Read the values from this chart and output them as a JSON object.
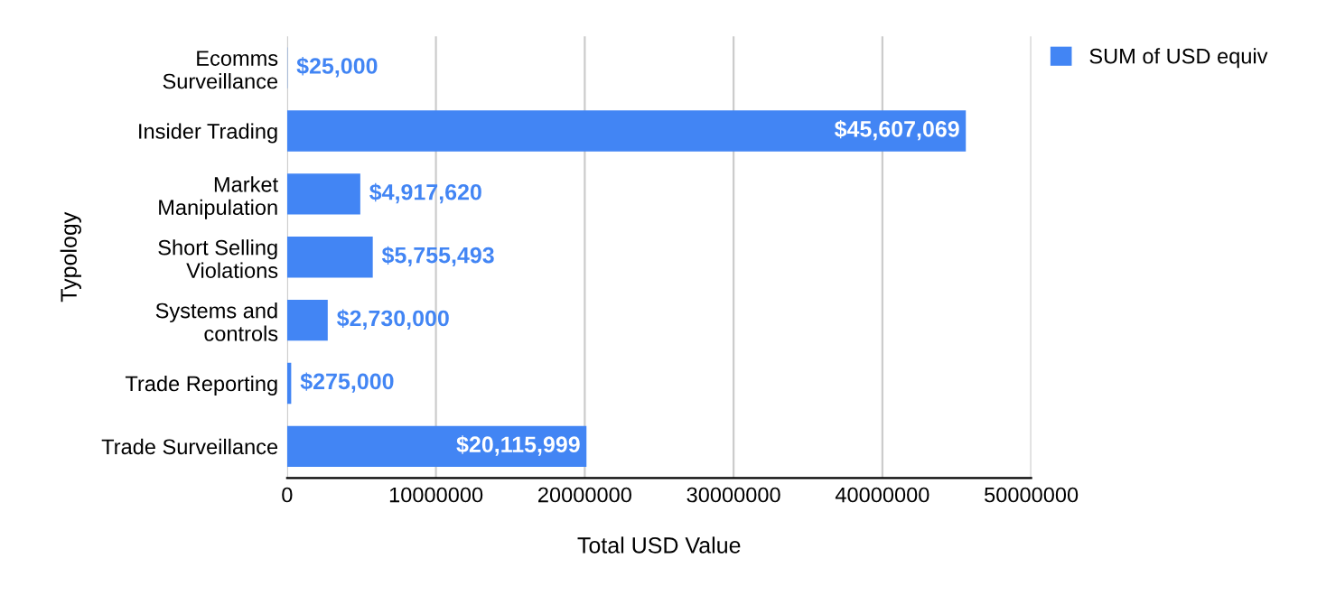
{
  "chart_data": {
    "type": "bar",
    "orientation": "horizontal",
    "xlabel": "Total USD Value",
    "ylabel": "Typology",
    "categories": [
      "Ecomms\nSurveillance",
      "Insider Trading",
      "Market\nManipulation",
      "Short Selling\nViolations",
      "Systems and\ncontrols",
      "Trade Reporting",
      "Trade Surveillance"
    ],
    "series": [
      {
        "name": "SUM of USD equiv",
        "color": "#4285f4",
        "values": [
          25000,
          45607069,
          4917620,
          5755493,
          2730000,
          275000,
          20115999
        ],
        "value_labels": [
          "$25,000",
          "$45,607,069",
          "$4,917,620",
          "$5,755,493",
          "$2,730,000",
          "$275,000",
          "$20,115,999"
        ]
      }
    ],
    "xlim": [
      0,
      50000000
    ],
    "xticks": [
      0,
      10000000,
      20000000,
      30000000,
      40000000,
      50000000
    ],
    "grid": "x",
    "legend": "top right"
  }
}
